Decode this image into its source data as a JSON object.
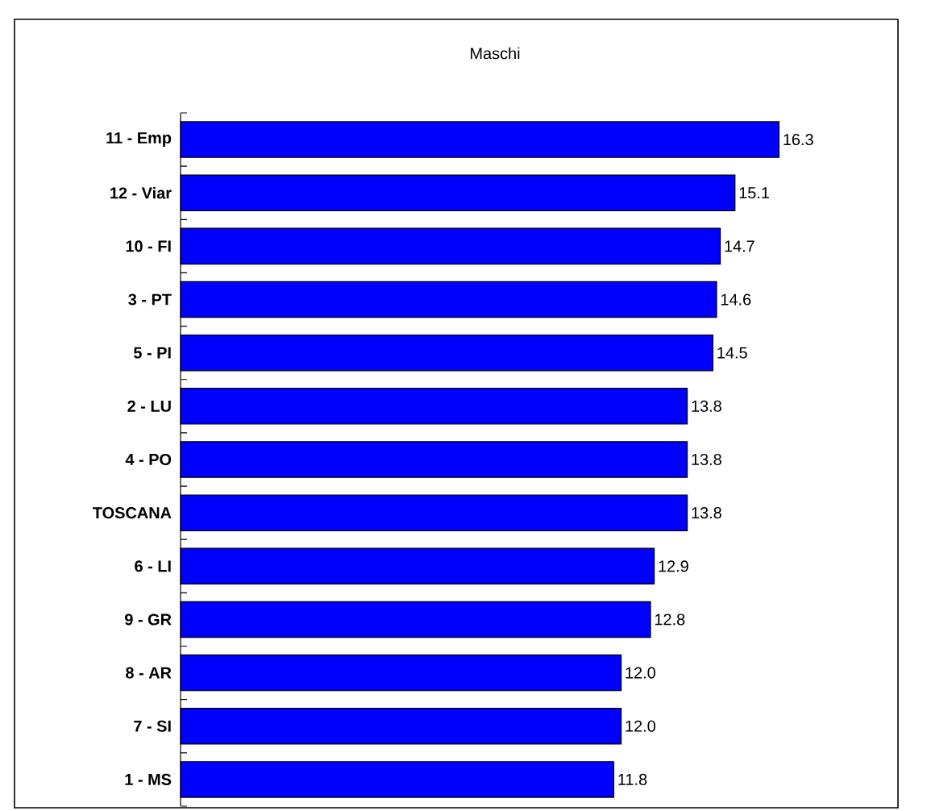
{
  "chart_data": {
    "type": "bar",
    "orientation": "horizontal",
    "title": "Maschi",
    "categories": [
      "11 - Emp",
      "12 - Viar",
      "10 - FI",
      "3 - PT",
      "5 - PI",
      "2 - LU",
      "4 - PO",
      "TOSCANA",
      "6 - LI",
      "9 - GR",
      "8 - AR",
      "7 - SI",
      "1 - MS"
    ],
    "values": [
      16.3,
      15.1,
      14.7,
      14.6,
      14.5,
      13.8,
      13.8,
      13.8,
      12.9,
      12.8,
      12.0,
      12.0,
      11.8
    ],
    "value_labels": [
      "16.3",
      "15.1",
      "14.7",
      "14.6",
      "14.5",
      "13.8",
      "13.8",
      "13.8",
      "12.9",
      "12.8",
      "12.0",
      "12.0",
      "11.8"
    ],
    "colors": [
      "#0000ff",
      "#0000ff",
      "#0000ff",
      "#0000ff",
      "#0000ff",
      "#0000ff",
      "#0000ff",
      "#0000ff",
      "#0000ff",
      "#0000ff",
      "#0000ff",
      "#0000ff",
      "#0000ff"
    ],
    "tick_labels": "y"
  }
}
